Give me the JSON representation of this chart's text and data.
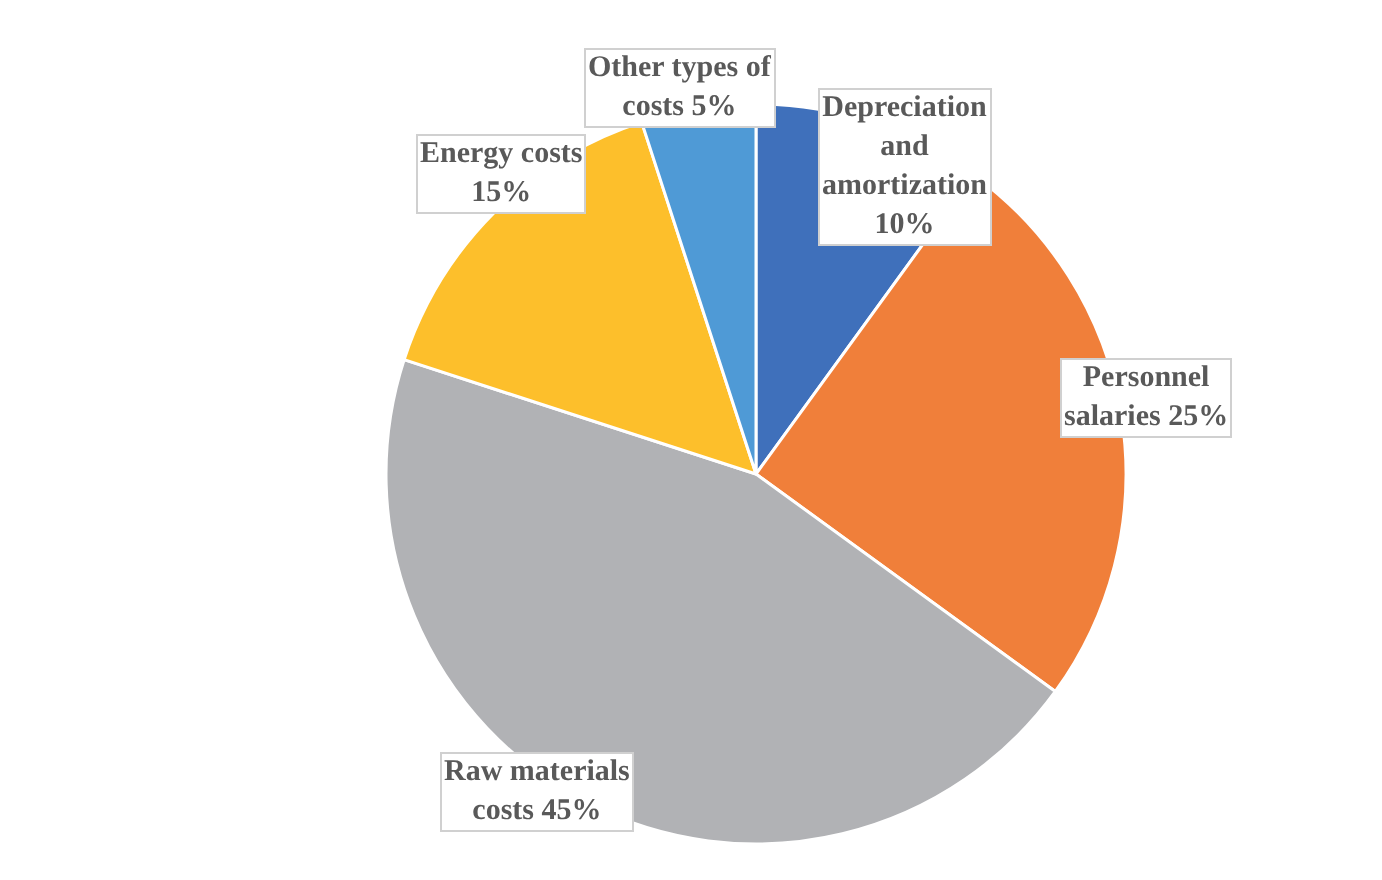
{
  "chart_data": {
    "type": "pie",
    "categories": [
      "Depreciation and amortization",
      "Personnel salaries",
      "Raw materials costs",
      "Energy costs",
      "Other types of costs"
    ],
    "values": [
      10,
      25,
      45,
      15,
      5
    ],
    "colors": [
      "#3f70bb",
      "#f07f3a",
      "#b1b2b5",
      "#fdbf2b",
      "#4f9ad6"
    ],
    "value_labels": [
      "10%",
      "25%",
      "45%",
      "15%",
      "5%"
    ],
    "legend": false
  }
}
